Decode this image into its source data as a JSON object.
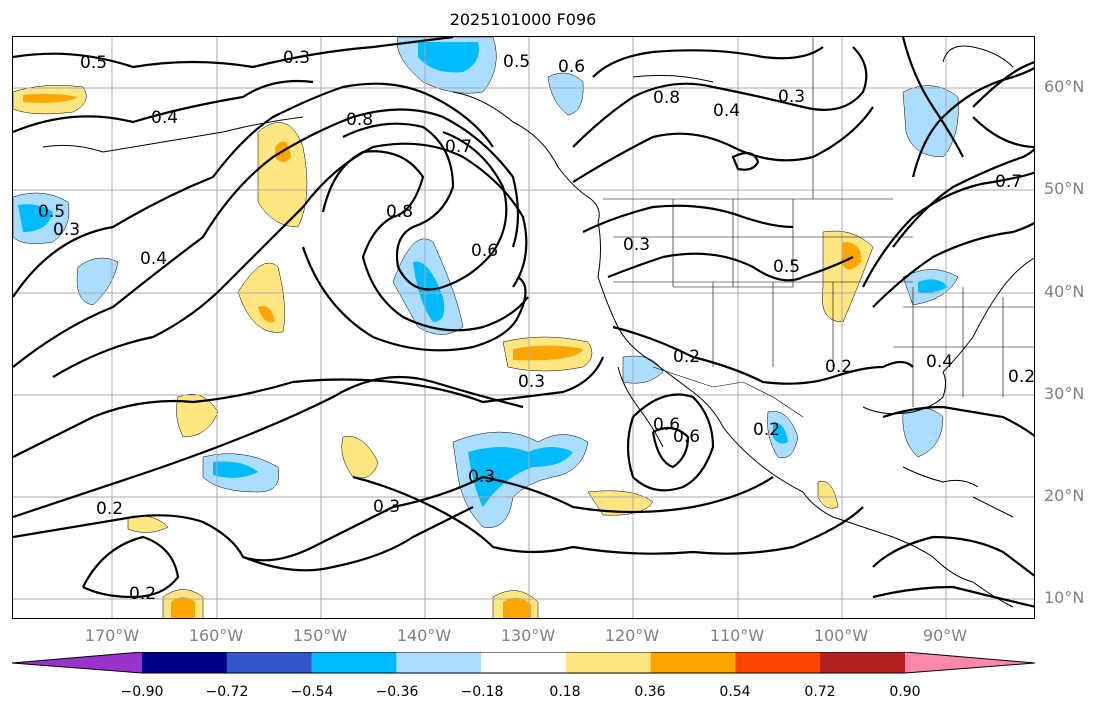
{
  "title": "2025101000 F096",
  "latitude_labels": [
    "60°N",
    "50°N",
    "40°N",
    "30°N",
    "20°N",
    "10°N"
  ],
  "longitude_labels": [
    "170°W",
    "160°W",
    "150°W",
    "140°W",
    "130°W",
    "120°W",
    "110°W",
    "100°W",
    "90°W"
  ],
  "colorbar": {
    "colors": [
      "#9933cc",
      "#000088",
      "#3355cc",
      "#00bbff",
      "#aaddff",
      "#ffffff",
      "#ffe680",
      "#ffa500",
      "#ff4500",
      "#b22222",
      "#ff88aa"
    ],
    "ticks": [
      "−0.90",
      "−0.72",
      "−0.54",
      "−0.36",
      "−0.18",
      "0.18",
      "0.36",
      "0.54",
      "0.72",
      "0.90"
    ]
  },
  "contour_labels": [
    "0.5",
    "0.3",
    "0.4",
    "0.8",
    "0.7",
    "0.5",
    "0.6",
    "0.8",
    "0.4",
    "0.3",
    "0.7",
    "0.6",
    "0.5",
    "0.3",
    "0.4",
    "0.8",
    "0.6",
    "0.5",
    "0.3",
    "0.3",
    "0.2",
    "0.2",
    "0.6",
    "0.2",
    "0.2",
    "0.4",
    "0.3",
    "0.3",
    "0.2",
    "0.2"
  ]
}
